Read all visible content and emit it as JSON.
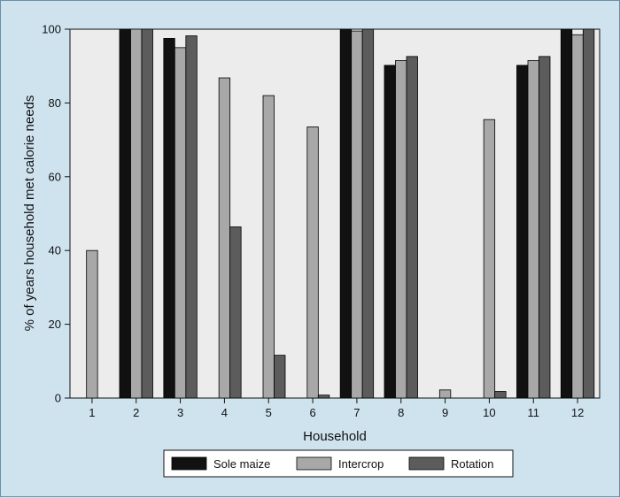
{
  "chart_data": {
    "type": "bar",
    "title": "",
    "xlabel": "Household",
    "ylabel": "% of years household met calorie needs",
    "ylim": [
      0,
      100
    ],
    "yticks": [
      0,
      20,
      40,
      60,
      80,
      100
    ],
    "grid": false,
    "legend": "bottom",
    "categories": [
      "1",
      "2",
      "3",
      "4",
      "5",
      "6",
      "7",
      "8",
      "9",
      "10",
      "11",
      "12"
    ],
    "series": [
      {
        "name": "Sole maize",
        "color": "#111111",
        "values": [
          0,
          100,
          97.5,
          0,
          0,
          0,
          100,
          90.2,
          0,
          0,
          90.2,
          100
        ]
      },
      {
        "name": "Intercrop",
        "color": "#a8a8a8",
        "values": [
          40,
          100,
          95,
          86.8,
          82,
          73.5,
          99.5,
          91.5,
          2.2,
          75.5,
          91.5,
          98.5
        ]
      },
      {
        "name": "Rotation",
        "color": "#5c5c5c",
        "values": [
          0,
          100,
          98.2,
          46.4,
          11.6,
          0.8,
          100,
          92.6,
          0,
          1.8,
          92.6,
          100
        ]
      }
    ],
    "colors": {
      "background": "#cfe3ef",
      "plot_background": "#ececec",
      "axis": "#111111"
    }
  }
}
